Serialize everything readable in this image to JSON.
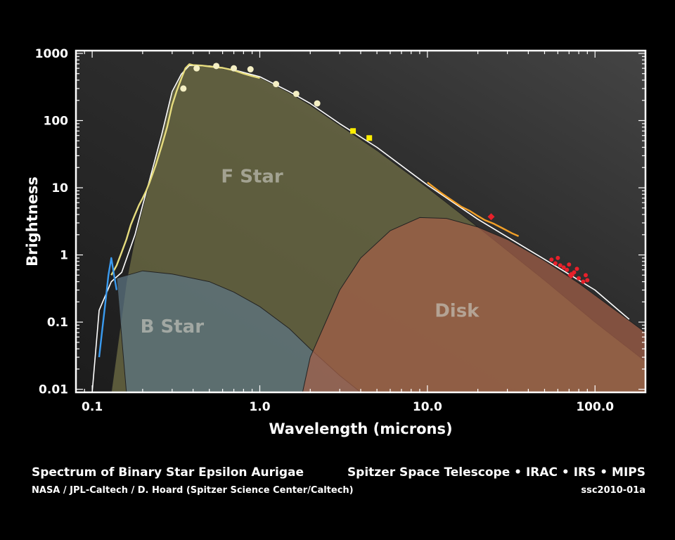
{
  "colors": {
    "background": "#000000",
    "plot_bg": "#2c2c2c",
    "f_star": "#737246",
    "b_star": "#5d7684",
    "disk": "#a35f48",
    "model_line": "#ffffff",
    "spectrum_yellow": "#e6dc7e",
    "spectrum_blue": "#3a9bf0",
    "irs_orange": "#f2a028",
    "mips_red": "#e8202a",
    "photometry_cream": "#f4efc4",
    "irac_yellow": "#ffee00"
  },
  "chart_data": {
    "type": "line",
    "xscale": "log",
    "yscale": "log",
    "xlabel": "Wavelength (microns)",
    "ylabel": "Brightness",
    "xlim": [
      0.08,
      200
    ],
    "ylim": [
      0.009,
      1100
    ],
    "xticks": [
      {
        "value": 0.1,
        "label": "0.1"
      },
      {
        "value": 1,
        "label": "1.0"
      },
      {
        "value": 10,
        "label": "10.0"
      },
      {
        "value": 100,
        "label": "100.0"
      }
    ],
    "yticks": [
      {
        "value": 0.01,
        "label": "0.01"
      },
      {
        "value": 0.1,
        "label": "0.1"
      },
      {
        "value": 1,
        "label": "1"
      },
      {
        "value": 10,
        "label": "10"
      },
      {
        "value": 100,
        "label": "100"
      },
      {
        "value": 1000,
        "label": "1000"
      }
    ],
    "regions": [
      {
        "label": "F Star",
        "label_at": [
          0.9,
          12
        ],
        "points": [
          [
            0.13,
            0.009
          ],
          [
            0.16,
            0.4
          ],
          [
            0.18,
            1.8
          ],
          [
            0.2,
            5
          ],
          [
            0.22,
            12
          ],
          [
            0.26,
            60
          ],
          [
            0.3,
            260
          ],
          [
            0.34,
            480
          ],
          [
            0.38,
            650
          ],
          [
            0.5,
            640
          ],
          [
            0.7,
            560
          ],
          [
            1,
            440
          ],
          [
            1.5,
            260
          ],
          [
            2,
            170
          ],
          [
            3,
            85
          ],
          [
            5,
            36
          ],
          [
            10,
            10
          ],
          [
            20,
            2.6
          ],
          [
            50,
            0.42
          ],
          [
            100,
            0.1
          ],
          [
            200,
            0.026
          ],
          [
            200,
            0.009
          ]
        ]
      },
      {
        "label": "B Star",
        "label_at": [
          0.3,
          0.07
        ],
        "points": [
          [
            0.16,
            0.009
          ],
          [
            0.14,
            0.45
          ],
          [
            0.2,
            0.58
          ],
          [
            0.3,
            0.52
          ],
          [
            0.5,
            0.4
          ],
          [
            0.7,
            0.28
          ],
          [
            1,
            0.17
          ],
          [
            1.5,
            0.08
          ],
          [
            2,
            0.04
          ],
          [
            3,
            0.016
          ],
          [
            4,
            0.009
          ]
        ]
      },
      {
        "label": "Disk",
        "label_at": [
          15,
          0.12
        ],
        "points": [
          [
            1.8,
            0.009
          ],
          [
            2,
            0.03
          ],
          [
            3,
            0.3
          ],
          [
            4,
            0.9
          ],
          [
            6,
            2.3
          ],
          [
            9,
            3.6
          ],
          [
            13,
            3.5
          ],
          [
            20,
            2.6
          ],
          [
            30,
            1.7
          ],
          [
            50,
            0.82
          ],
          [
            80,
            0.38
          ],
          [
            120,
            0.18
          ],
          [
            200,
            0.07
          ],
          [
            200,
            0.009
          ]
        ]
      }
    ],
    "series": [
      {
        "kind": "model_line",
        "color": "#ffffff",
        "points": [
          [
            0.1,
            0.009
          ],
          [
            0.11,
            0.15
          ],
          [
            0.13,
            0.4
          ],
          [
            0.15,
            0.55
          ],
          [
            0.18,
            2
          ],
          [
            0.2,
            5.5
          ],
          [
            0.22,
            13
          ],
          [
            0.26,
            62
          ],
          [
            0.3,
            270
          ],
          [
            0.34,
            490
          ],
          [
            0.38,
            660
          ],
          [
            0.5,
            650
          ],
          [
            0.7,
            570
          ],
          [
            1,
            450
          ],
          [
            1.5,
            270
          ],
          [
            2,
            180
          ],
          [
            3,
            90
          ],
          [
            5,
            40
          ],
          [
            10,
            11
          ],
          [
            20,
            3.4
          ],
          [
            50,
            0.86
          ],
          [
            100,
            0.3
          ],
          [
            160,
            0.11
          ]
        ]
      },
      {
        "kind": "spectrum",
        "color": "#e6dc7e",
        "points": [
          [
            0.13,
            0.5
          ],
          [
            0.14,
            0.7
          ],
          [
            0.15,
            1.1
          ],
          [
            0.16,
            1.7
          ],
          [
            0.17,
            2.8
          ],
          [
            0.18,
            4
          ],
          [
            0.19,
            5.5
          ],
          [
            0.2,
            7
          ],
          [
            0.21,
            9
          ],
          [
            0.22,
            12
          ],
          [
            0.24,
            22
          ],
          [
            0.26,
            42
          ],
          [
            0.28,
            80
          ],
          [
            0.3,
            170
          ],
          [
            0.32,
            280
          ],
          [
            0.34,
            420
          ],
          [
            0.36,
            600
          ],
          [
            0.38,
            690
          ],
          [
            0.4,
            670
          ],
          [
            0.45,
            660
          ],
          [
            0.5,
            640
          ],
          [
            0.6,
            610
          ],
          [
            0.7,
            560
          ],
          [
            0.8,
            500
          ],
          [
            0.9,
            460
          ],
          [
            1,
            430
          ]
        ]
      },
      {
        "kind": "spectrum",
        "color": "#3a9bf0",
        "points": [
          [
            0.11,
            0.03
          ],
          [
            0.115,
            0.08
          ],
          [
            0.12,
            0.2
          ],
          [
            0.125,
            0.5
          ],
          [
            0.13,
            0.9
          ],
          [
            0.135,
            0.5
          ],
          [
            0.14,
            0.3
          ]
        ]
      },
      {
        "kind": "spectrum",
        "color": "#f2a028",
        "points": [
          [
            10,
            12
          ],
          [
            12,
            8.5
          ],
          [
            14,
            6.5
          ],
          [
            16,
            5.2
          ],
          [
            18,
            4.5
          ],
          [
            20,
            3.8
          ],
          [
            22,
            3.3
          ],
          [
            25,
            2.9
          ],
          [
            28,
            2.5
          ],
          [
            32,
            2.1
          ],
          [
            35,
            1.9
          ]
        ]
      }
    ],
    "markers": [
      {
        "shape": "circle",
        "color": "#f4efc4",
        "points": [
          [
            0.35,
            300
          ],
          [
            0.42,
            600
          ],
          [
            0.55,
            650
          ],
          [
            0.7,
            600
          ],
          [
            0.88,
            580
          ],
          [
            1.25,
            350
          ],
          [
            1.65,
            250
          ],
          [
            2.2,
            180
          ]
        ]
      },
      {
        "shape": "square",
        "color": "#ffee00",
        "points": [
          [
            3.6,
            70
          ],
          [
            4.5,
            55
          ]
        ]
      },
      {
        "shape": "diamond",
        "color": "#e8202a",
        "points": [
          [
            24,
            3.7
          ],
          [
            72,
            0.5
          ]
        ]
      },
      {
        "shape": "dot",
        "color": "#e8202a",
        "points": [
          [
            55,
            0.85
          ],
          [
            58,
            0.75
          ],
          [
            60,
            0.9
          ],
          [
            62,
            0.7
          ],
          [
            65,
            0.65
          ],
          [
            68,
            0.6
          ],
          [
            70,
            0.72
          ],
          [
            75,
            0.55
          ],
          [
            78,
            0.62
          ],
          [
            80,
            0.45
          ],
          [
            85,
            0.4
          ],
          [
            88,
            0.5
          ],
          [
            90,
            0.42
          ]
        ]
      }
    ]
  },
  "caption": {
    "title": "Spectrum of Binary Star Epsilon Aurigae",
    "instruments": "Spitzer Space Telescope • IRAC • IRS • MIPS",
    "credit": "NASA / JPL-Caltech / D. Hoard (Spitzer Science Center/Caltech)",
    "image_id": "ssc2010-01a"
  }
}
